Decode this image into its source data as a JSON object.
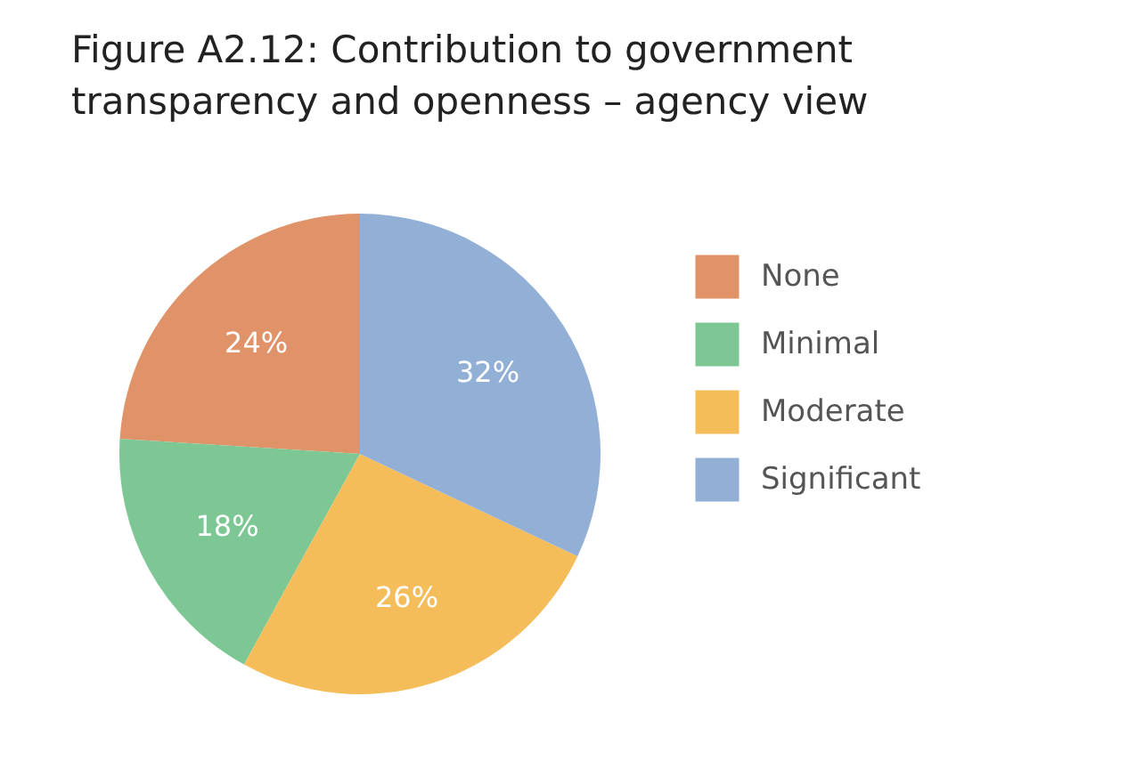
{
  "chart_data": {
    "type": "pie",
    "title": "Figure A2.12: Contribution to government transparency and openness – agency view",
    "categories": [
      "None",
      "Minimal",
      "Moderate",
      "Significant"
    ],
    "values": [
      24,
      18,
      26,
      32
    ],
    "value_labels": [
      "24%",
      "18%",
      "26%",
      "32%"
    ],
    "colors": [
      "#e09268",
      "#7dc795",
      "#f5bc5a",
      "#92afd6"
    ],
    "legend": "right"
  }
}
